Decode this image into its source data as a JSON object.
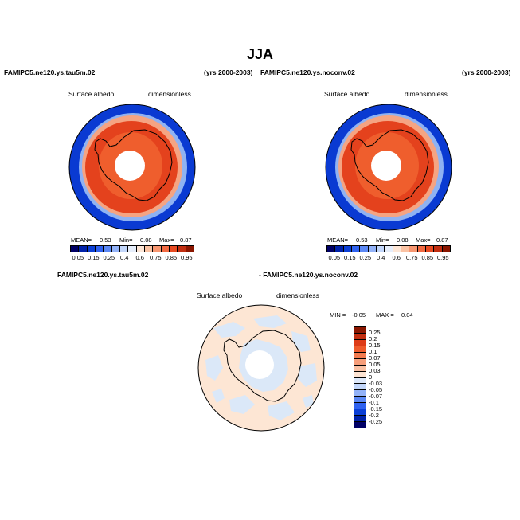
{
  "figure": {
    "title": "JJA"
  },
  "panels": [
    {
      "case_name": "FAMIPC5.ne120.ys.tau5m.02",
      "years": "(yrs 2000-2003)",
      "variable": "Surface albedo",
      "units": "dimensionless",
      "stats": {
        "mean_label": "MEAN=",
        "mean": "0.53",
        "min_label": "Min=",
        "min": "0.08",
        "max_label": "Max=",
        "max": "0.87"
      }
    },
    {
      "case_name": "FAMIPC5.ne120.ys.noconv.02",
      "years": "(yrs 2000-2003)",
      "variable": "Surface albedo",
      "units": "dimensionless",
      "stats": {
        "mean_label": "MEAN=",
        "mean": "0.53",
        "min_label": "Min=",
        "min": "0.08",
        "max_label": "Max=",
        "max": "0.87"
      }
    }
  ],
  "difference": {
    "case_a": "FAMIPC5.ne120.ys.tau5m.02",
    "case_b": "- FAMIPC5.ne120.ys.noconv.02",
    "variable": "Surface albedo",
    "units": "dimensionless",
    "stats": {
      "min_label": "MIN =",
      "min": "-0.05",
      "max_label": "MAX =",
      "max": "0.04"
    }
  },
  "colorbar_main": {
    "labels": [
      "0.05",
      "0.15",
      "0.25",
      "0.4",
      "0.6",
      "0.75",
      "0.85",
      "0.95"
    ],
    "colors": [
      "#000066",
      "#0022aa",
      "#0b3fd6",
      "#2f62f0",
      "#5b88f5",
      "#92b2f8",
      "#c2d6fa",
      "#e6eefb",
      "#fde6d6",
      "#fbc3a4",
      "#f79670",
      "#f26a42",
      "#e84b22",
      "#c22e10",
      "#8a1600"
    ]
  },
  "colorbar_diff": {
    "labels": [
      "0.25",
      "0.2",
      "0.15",
      "0.1",
      "0.07",
      "0.05",
      "0.03",
      "0",
      "-0.03",
      "-0.05",
      "-0.07",
      "-0.1",
      "-0.15",
      "-0.2",
      "-0.25"
    ],
    "colors": [
      "#8a1600",
      "#c22e10",
      "#dd3c18",
      "#ee5b2c",
      "#f47c50",
      "#f79e7a",
      "#fac1a4",
      "#fde3d2",
      "#dde8fa",
      "#c2d6fa",
      "#92b2f8",
      "#5b88f5",
      "#2f62f0",
      "#0b3fd6",
      "#0022aa",
      "#000066"
    ]
  },
  "colors": {
    "ice": "#e4421d",
    "ice_inner": "#ef5e2d",
    "ocean": "#0a3ad2",
    "diff_field": "#fde6d4",
    "diff_patch": "#dbe8f8"
  }
}
